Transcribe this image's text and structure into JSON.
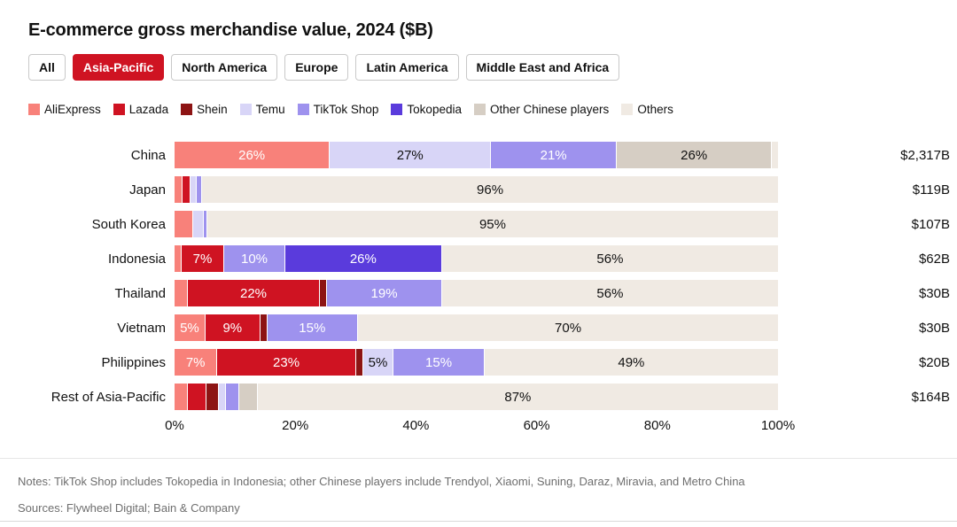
{
  "header": {
    "title": "E-commerce gross merchandise value, 2024 ($B)"
  },
  "filters": {
    "active_color": "#cf1322",
    "tabs": [
      {
        "label": "All",
        "active": false
      },
      {
        "label": "Asia-Pacific",
        "active": true
      },
      {
        "label": "North America",
        "active": false
      },
      {
        "label": "Europe",
        "active": false
      },
      {
        "label": "Latin America",
        "active": false
      },
      {
        "label": "Middle East and Africa",
        "active": false
      }
    ]
  },
  "chart_data": {
    "type": "bar",
    "variant": "horizontal-stacked-100pct",
    "title": "E-commerce gross merchandise value, 2024 ($B)",
    "x_axis": {
      "ticks": [
        "0%",
        "20%",
        "40%",
        "60%",
        "80%",
        "100%"
      ],
      "range": [
        0,
        100
      ],
      "unit": "%"
    },
    "legend": [
      {
        "name": "AliExpress",
        "color": "#f8817a",
        "text_color": "#ffffff"
      },
      {
        "name": "Lazada",
        "color": "#cf1322",
        "text_color": "#ffffff"
      },
      {
        "name": "Shein",
        "color": "#8d1414",
        "text_color": "#ffffff"
      },
      {
        "name": "Temu",
        "color": "#d8d5f7",
        "text_color": "#111111"
      },
      {
        "name": "TikTok Shop",
        "color": "#9e92ee",
        "text_color": "#ffffff"
      },
      {
        "name": "Tokopedia",
        "color": "#5a3bdc",
        "text_color": "#ffffff"
      },
      {
        "name": "Other Chinese players",
        "color": "#d6cec4",
        "text_color": "#111111"
      },
      {
        "name": "Others",
        "color": "#f0eae3",
        "text_color": "#111111"
      }
    ],
    "rows": [
      {
        "label": "China",
        "total": "$2,317B",
        "segments": [
          {
            "series": "AliExpress",
            "value": 26,
            "label": "26%"
          },
          {
            "series": "Temu",
            "value": 27,
            "label": "27%"
          },
          {
            "series": "TikTok Shop",
            "value": 21,
            "label": "21%"
          },
          {
            "series": "Other Chinese players",
            "value": 26,
            "label": "26%"
          },
          {
            "series": "Others",
            "value": 1,
            "label": ""
          }
        ]
      },
      {
        "label": "Japan",
        "total": "$119B",
        "segments": [
          {
            "series": "AliExpress",
            "value": 1.2,
            "label": ""
          },
          {
            "series": "Lazada",
            "value": 1.2,
            "label": ""
          },
          {
            "series": "Temu",
            "value": 0.8,
            "label": ""
          },
          {
            "series": "TikTok Shop",
            "value": 0.8,
            "label": ""
          },
          {
            "series": "Others",
            "value": 96,
            "label": "96%"
          }
        ]
      },
      {
        "label": "South Korea",
        "total": "$107B",
        "segments": [
          {
            "series": "AliExpress",
            "value": 3,
            "label": ""
          },
          {
            "series": "Temu",
            "value": 1.5,
            "label": ""
          },
          {
            "series": "TikTok Shop",
            "value": 0.5,
            "label": ""
          },
          {
            "series": "Others",
            "value": 95,
            "label": "95%"
          }
        ]
      },
      {
        "label": "Indonesia",
        "total": "$62B",
        "segments": [
          {
            "series": "AliExpress",
            "value": 1,
            "label": ""
          },
          {
            "series": "Lazada",
            "value": 7,
            "label": "7%"
          },
          {
            "series": "TikTok Shop",
            "value": 10,
            "label": "10%"
          },
          {
            "series": "Tokopedia",
            "value": 26,
            "label": "26%"
          },
          {
            "series": "Others",
            "value": 56,
            "label": "56%"
          }
        ]
      },
      {
        "label": "Thailand",
        "total": "$30B",
        "segments": [
          {
            "series": "AliExpress",
            "value": 2,
            "label": ""
          },
          {
            "series": "Lazada",
            "value": 22,
            "label": "22%"
          },
          {
            "series": "Shein",
            "value": 1,
            "label": ""
          },
          {
            "series": "TikTok Shop",
            "value": 19,
            "label": "19%"
          },
          {
            "series": "Others",
            "value": 56,
            "label": "56%"
          }
        ]
      },
      {
        "label": "Vietnam",
        "total": "$30B",
        "segments": [
          {
            "series": "AliExpress",
            "value": 5,
            "label": "5%"
          },
          {
            "series": "Lazada",
            "value": 9,
            "label": "9%"
          },
          {
            "series": "Shein",
            "value": 1,
            "label": ""
          },
          {
            "series": "TikTok Shop",
            "value": 15,
            "label": "15%"
          },
          {
            "series": "Others",
            "value": 70,
            "label": "70%"
          }
        ]
      },
      {
        "label": "Philippines",
        "total": "$20B",
        "segments": [
          {
            "series": "AliExpress",
            "value": 7,
            "label": "7%"
          },
          {
            "series": "Lazada",
            "value": 23,
            "label": "23%"
          },
          {
            "series": "Shein",
            "value": 1,
            "label": ""
          },
          {
            "series": "Temu",
            "value": 5,
            "label": "5%"
          },
          {
            "series": "TikTok Shop",
            "value": 15,
            "label": "15%"
          },
          {
            "series": "Others",
            "value": 49,
            "label": "49%"
          }
        ]
      },
      {
        "label": "Rest of Asia-Pacific",
        "total": "$164B",
        "segments": [
          {
            "series": "AliExpress",
            "value": 2,
            "label": ""
          },
          {
            "series": "Lazada",
            "value": 3,
            "label": ""
          },
          {
            "series": "Shein",
            "value": 2,
            "label": ""
          },
          {
            "series": "Temu",
            "value": 1,
            "label": ""
          },
          {
            "series": "TikTok Shop",
            "value": 2,
            "label": ""
          },
          {
            "series": "Other Chinese players",
            "value": 3,
            "label": ""
          },
          {
            "series": "Others",
            "value": 87,
            "label": "87%"
          }
        ]
      }
    ]
  },
  "footer": {
    "notes": "Notes: TikTok Shop includes Tokopedia in Indonesia; other Chinese players include Trendyol, Xiaomi, Suning, Daraz, Miravia, and Metro China",
    "sources": "Sources: Flywheel Digital; Bain & Company"
  }
}
